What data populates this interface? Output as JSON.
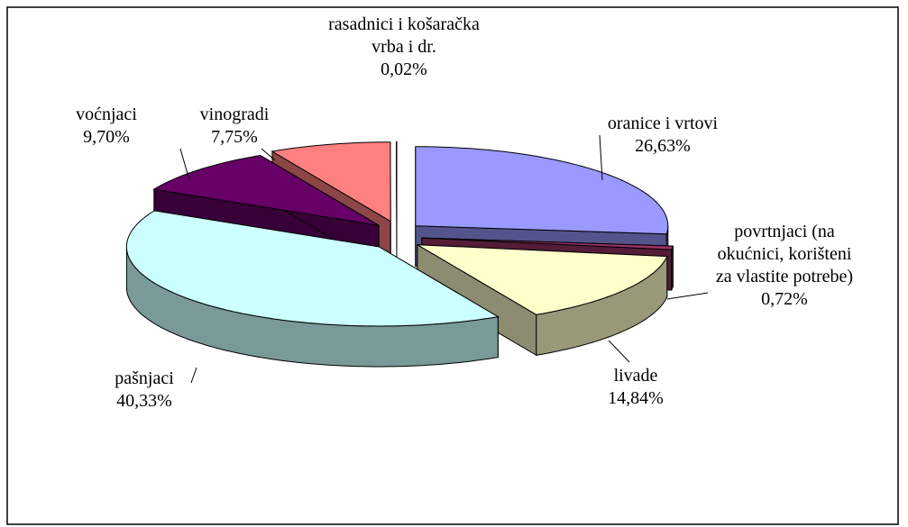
{
  "chart_data": {
    "type": "pie",
    "three_d": true,
    "exploded": true,
    "categories": [
      "oranice i vrtovi",
      "povrtnjaci (na okućnici, korišteni za vlastite potrebe)",
      "livade",
      "pašnjaci",
      "voćnjaci",
      "vinogradi",
      "rasadnici i košaračka vrba i dr."
    ],
    "values": [
      26.63,
      0.72,
      14.84,
      40.33,
      9.7,
      7.75,
      0.02
    ],
    "value_labels": [
      "26,63%",
      "0,72%",
      "14,84%",
      "40,33%",
      "9,70%",
      "7,75%",
      "0,02%"
    ],
    "colors": [
      "#9999ff",
      "#993366",
      "#ffffcc",
      "#ccffff",
      "#660066",
      "#ff8080",
      "#0066cc"
    ]
  }
}
